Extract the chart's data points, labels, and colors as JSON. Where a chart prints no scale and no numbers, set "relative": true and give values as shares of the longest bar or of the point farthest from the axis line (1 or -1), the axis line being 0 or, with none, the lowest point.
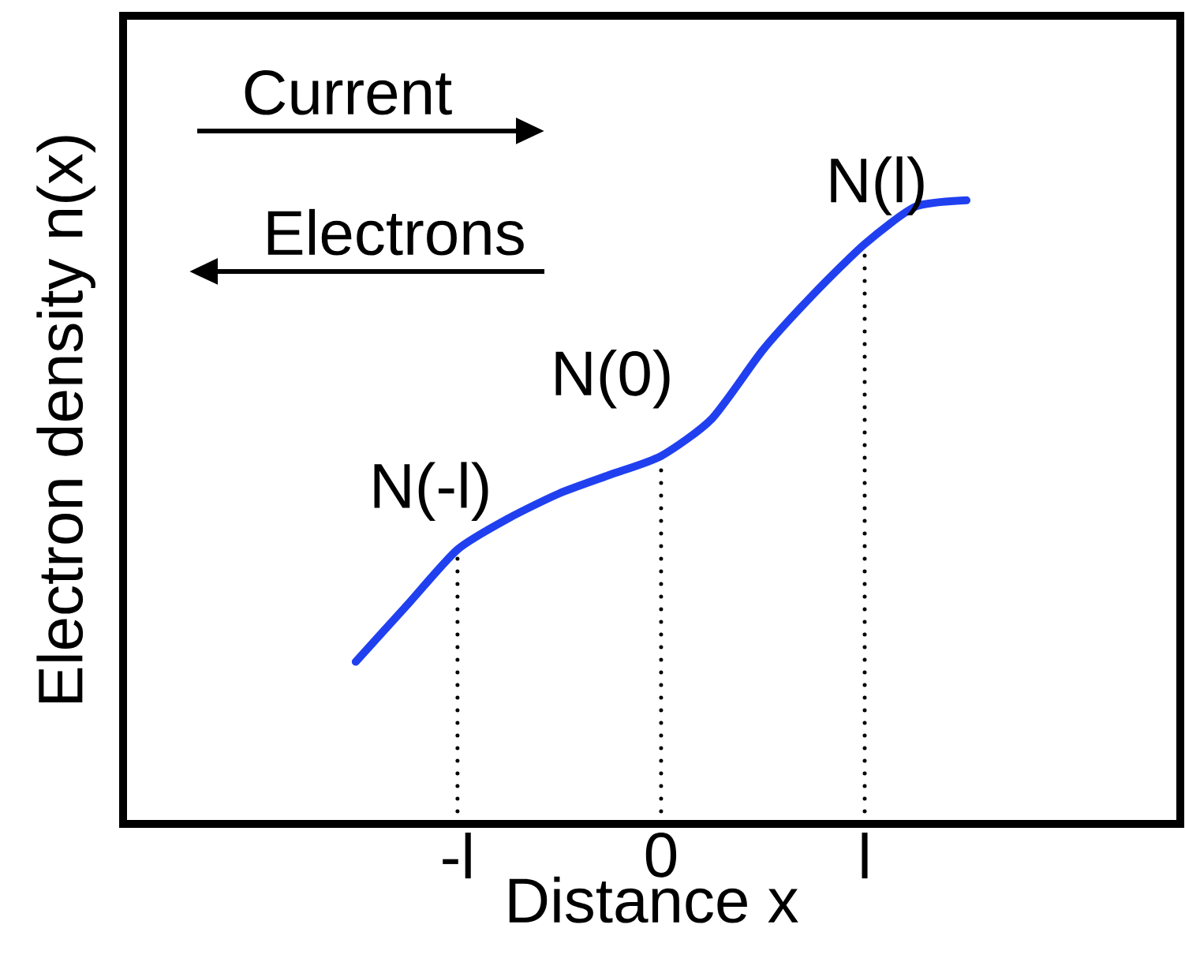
{
  "chart_data": {
    "type": "line",
    "xlabel": "Distance x",
    "ylabel": "Electron density n(x)",
    "relative": true,
    "categories": [
      null,
      null,
      "-l",
      null,
      null,
      null,
      "0",
      null,
      null,
      null,
      "l",
      null,
      null
    ],
    "series": [
      {
        "color": "#2040f0",
        "values": [
          0.26,
          0.35,
          0.44,
          0.49,
          0.53,
          0.56,
          0.59,
          0.65,
          0.76,
          0.85,
          0.93,
          0.99,
          1
        ]
      }
    ],
    "ref_lines": [
      {
        "axis": "x",
        "value": "-l",
        "line_style": "dotted"
      },
      {
        "axis": "x",
        "value": "0",
        "line_style": "dotted"
      },
      {
        "axis": "x",
        "value": "l",
        "line_style": "dotted"
      }
    ],
    "annotations": [
      {
        "text": "N(-l)",
        "x": "-l",
        "y": 0.44
      },
      {
        "text": "N(0)",
        "x": "0",
        "y": 0.59
      },
      {
        "text": "N(l)",
        "x": "l",
        "y": 0.93
      },
      "Current",
      "Electrons"
    ],
    "grid": false,
    "marker": "none",
    "line_style": "solid"
  }
}
